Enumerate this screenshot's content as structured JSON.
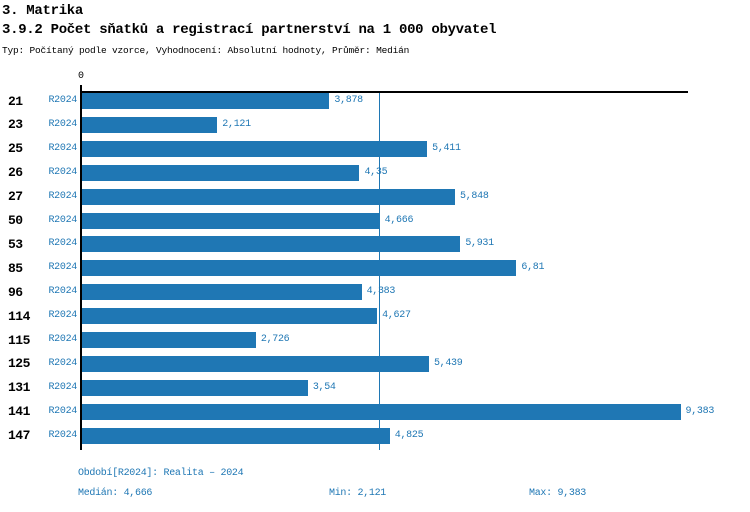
{
  "header": {
    "section_title": "3. Matrika",
    "chart_title": "3.9.2 Počet sňatků a registrací partnerství na 1 000 obyvatel",
    "subtitle": "Typ: Počítaný podle vzorce, Vyhodnocení: Absolutní hodnoty, Průměr: Medián"
  },
  "chart_data": {
    "type": "bar",
    "orientation": "horizontal",
    "title": "3.9.2 Počet sňatků a registrací partnerství na 1 000 obyvatel",
    "categories": [
      "21",
      "23",
      "25",
      "26",
      "27",
      "50",
      "53",
      "85",
      "96",
      "114",
      "115",
      "125",
      "131",
      "141",
      "147"
    ],
    "series_label": "R2024",
    "values": [
      3.878,
      2.121,
      5.411,
      4.35,
      5.848,
      4.666,
      5.931,
      6.81,
      4.383,
      4.627,
      2.726,
      5.439,
      3.54,
      9.383,
      4.825
    ],
    "value_labels": [
      "3,878",
      "2,121",
      "5,411",
      "4,35",
      "5,848",
      "4,666",
      "5,931",
      "6,81",
      "4,383",
      "4,627",
      "2,726",
      "5,439",
      "3,54",
      "9,383",
      "4,825"
    ],
    "xlim": [
      0,
      9.5
    ],
    "zero_tick_label": "0",
    "median_value": 4.666,
    "median": "4,666",
    "min": "2,121",
    "max": "9,383",
    "bar_color": "#1f77b4",
    "accent_color": "#1f77b4",
    "grid": false,
    "legend_position": "none"
  },
  "footer": {
    "period_note": "Období[R2024]: Realita – 2024",
    "median_label": "Medián: 4,666",
    "min_label": "Min: 2,121",
    "max_label": "Max: 9,383"
  }
}
